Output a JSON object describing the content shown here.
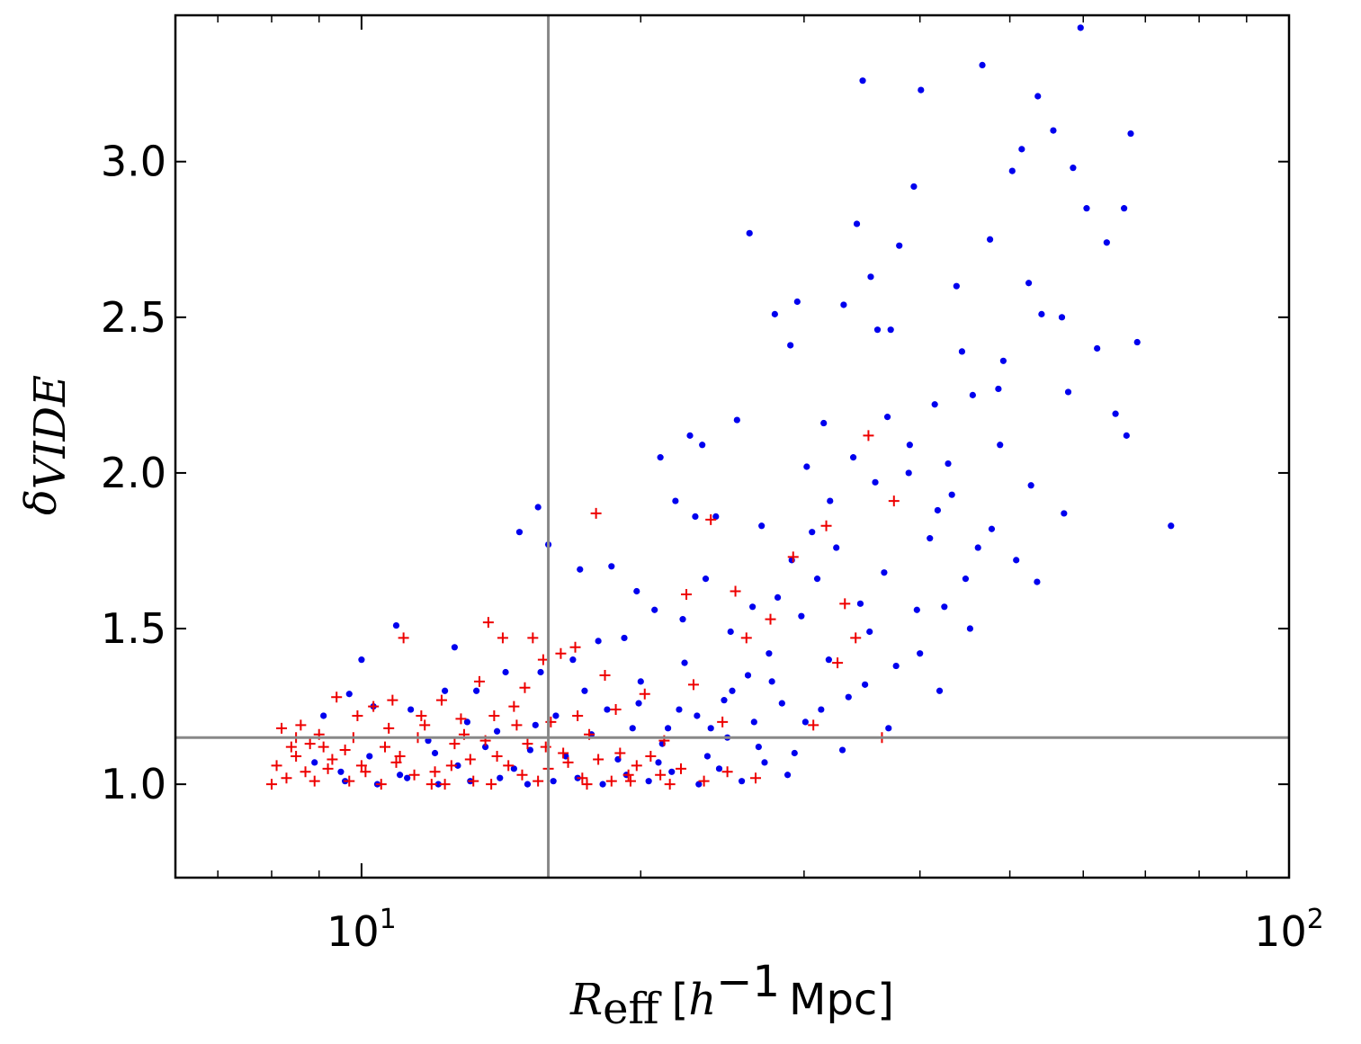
{
  "chart_data": {
    "type": "scatter",
    "title": "",
    "xlabel": {
      "symbol": "R",
      "subscript": "eff",
      "unit_open": "[",
      "unit_h": "h",
      "unit_exp": "−1",
      "unit_rest": "Mpc]"
    },
    "ylabel": {
      "symbol": "δ",
      "subscript": "VIDE"
    },
    "x_scale": "log",
    "xlim": [
      6.3,
      100
    ],
    "ylim": [
      0.7,
      3.47
    ],
    "x_ticks": [
      {
        "value": 10,
        "base": "10",
        "exp": "1"
      },
      {
        "value": 100,
        "base": "10",
        "exp": "2"
      }
    ],
    "y_ticks": [
      {
        "value": 1.0,
        "label": "1.0"
      },
      {
        "value": 1.5,
        "label": "1.5"
      },
      {
        "value": 2.0,
        "label": "2.0"
      },
      {
        "value": 2.5,
        "label": "2.5"
      },
      {
        "value": 3.0,
        "label": "3.0"
      }
    ],
    "reference_lines": {
      "x": 15.9,
      "y": 1.15,
      "color": "#888888"
    },
    "grid": false,
    "series": [
      {
        "marker": "circle",
        "color": "#0000ee",
        "points": [
          [
            10.0,
            1.4
          ],
          [
            10.9,
            1.51
          ],
          [
            12.6,
            1.44
          ],
          [
            14.8,
            1.81
          ],
          [
            15.5,
            1.89
          ],
          [
            15.9,
            1.77
          ],
          [
            17.2,
            1.69
          ],
          [
            18.6,
            1.7
          ],
          [
            19.8,
            1.62
          ],
          [
            21.0,
            2.05
          ],
          [
            21.8,
            1.91
          ],
          [
            22.6,
            2.12
          ],
          [
            23.3,
            2.09
          ],
          [
            22.9,
            1.86
          ],
          [
            24.1,
            1.86
          ],
          [
            25.4,
            2.17
          ],
          [
            26.2,
            2.77
          ],
          [
            27.0,
            1.83
          ],
          [
            27.9,
            2.51
          ],
          [
            29.0,
            2.41
          ],
          [
            29.5,
            2.55
          ],
          [
            30.2,
            2.02
          ],
          [
            31.5,
            2.16
          ],
          [
            33.1,
            2.54
          ],
          [
            34.2,
            2.8
          ],
          [
            34.7,
            3.26
          ],
          [
            35.4,
            2.63
          ],
          [
            36.0,
            2.46
          ],
          [
            37.2,
            2.46
          ],
          [
            38.0,
            2.73
          ],
          [
            39.4,
            2.92
          ],
          [
            40.1,
            3.23
          ],
          [
            41.5,
            2.22
          ],
          [
            42.9,
            2.03
          ],
          [
            43.8,
            2.6
          ],
          [
            44.4,
            2.39
          ],
          [
            45.6,
            2.25
          ],
          [
            46.7,
            3.31
          ],
          [
            47.6,
            2.75
          ],
          [
            48.6,
            2.27
          ],
          [
            49.2,
            2.36
          ],
          [
            50.3,
            2.97
          ],
          [
            51.5,
            3.04
          ],
          [
            52.4,
            2.61
          ],
          [
            53.6,
            3.21
          ],
          [
            54.1,
            2.51
          ],
          [
            55.7,
            3.1
          ],
          [
            56.9,
            2.5
          ],
          [
            57.8,
            2.26
          ],
          [
            58.5,
            2.98
          ],
          [
            59.6,
            3.43
          ],
          [
            60.5,
            2.85
          ],
          [
            62.1,
            2.4
          ],
          [
            63.6,
            2.74
          ],
          [
            65.0,
            2.19
          ],
          [
            66.4,
            2.85
          ],
          [
            67.5,
            3.09
          ],
          [
            68.6,
            2.42
          ],
          [
            66.8,
            2.12
          ],
          [
            74.6,
            1.83
          ],
          [
            57.2,
            1.87
          ],
          [
            52.7,
            1.96
          ],
          [
            48.8,
            2.09
          ],
          [
            46.2,
            1.76
          ],
          [
            43.3,
            1.93
          ],
          [
            41.0,
            1.79
          ],
          [
            38.9,
            2.0
          ],
          [
            36.6,
            1.68
          ],
          [
            34.5,
            1.58
          ],
          [
            32.0,
            1.91
          ],
          [
            30.6,
            1.81
          ],
          [
            29.1,
            1.72
          ],
          [
            28.1,
            1.6
          ],
          [
            26.4,
            1.57
          ],
          [
            25.0,
            1.49
          ],
          [
            23.5,
            1.66
          ],
          [
            22.2,
            1.53
          ],
          [
            20.7,
            1.56
          ],
          [
            19.2,
            1.47
          ],
          [
            18.0,
            1.46
          ],
          [
            16.9,
            1.4
          ],
          [
            15.6,
            1.36
          ],
          [
            14.3,
            1.36
          ],
          [
            13.3,
            1.3
          ],
          [
            12.3,
            1.3
          ],
          [
            11.3,
            1.24
          ],
          [
            10.3,
            1.25
          ],
          [
            9.7,
            1.29
          ],
          [
            9.1,
            1.22
          ],
          [
            53.5,
            1.65
          ],
          [
            50.8,
            1.72
          ],
          [
            47.8,
            1.82
          ],
          [
            45.3,
            1.5
          ],
          [
            42.5,
            1.57
          ],
          [
            40.0,
            1.42
          ],
          [
            37.7,
            1.38
          ],
          [
            35.3,
            1.49
          ],
          [
            33.5,
            1.28
          ],
          [
            31.9,
            1.4
          ],
          [
            30.1,
            1.2
          ],
          [
            28.4,
            1.26
          ],
          [
            26.8,
            1.12
          ],
          [
            25.1,
            1.3
          ],
          [
            23.8,
            1.18
          ],
          [
            22.3,
            1.39
          ],
          [
            21.1,
            1.13
          ],
          [
            19.9,
            1.26
          ],
          [
            18.9,
            1.08
          ],
          [
            17.7,
            1.16
          ],
          [
            16.6,
            1.09
          ],
          [
            15.4,
            1.19
          ],
          [
            14.6,
            1.05
          ],
          [
            13.6,
            1.12
          ],
          [
            12.7,
            1.06
          ],
          [
            11.8,
            1.14
          ],
          [
            11.0,
            1.03
          ],
          [
            10.2,
            1.09
          ],
          [
            9.5,
            1.04
          ],
          [
            8.9,
            1.07
          ],
          [
            28.8,
            1.03
          ],
          [
            27.2,
            1.07
          ],
          [
            25.7,
            1.01
          ],
          [
            24.3,
            1.05
          ],
          [
            23.1,
            1.0
          ],
          [
            21.6,
            1.04
          ],
          [
            20.4,
            1.01
          ],
          [
            19.3,
            1.03
          ],
          [
            18.2,
            1.0
          ],
          [
            17.1,
            1.02
          ],
          [
            16.1,
            1.01
          ],
          [
            15.1,
            1.0
          ],
          [
            14.1,
            1.02
          ],
          [
            13.1,
            1.01
          ],
          [
            12.1,
            1.0
          ],
          [
            11.2,
            1.02
          ],
          [
            10.4,
            1.0
          ],
          [
            9.6,
            1.01
          ],
          [
            41.8,
            1.88
          ],
          [
            39.0,
            2.09
          ],
          [
            36.9,
            2.18
          ],
          [
            35.8,
            1.97
          ],
          [
            33.9,
            2.05
          ],
          [
            32.5,
            1.76
          ],
          [
            31.0,
            1.66
          ],
          [
            29.8,
            1.54
          ],
          [
            27.5,
            1.42
          ],
          [
            26.1,
            1.35
          ],
          [
            24.6,
            1.27
          ],
          [
            23.0,
            1.22
          ],
          [
            21.4,
            1.18
          ],
          [
            20.0,
            1.33
          ],
          [
            18.4,
            1.24
          ],
          [
            17.4,
            1.3
          ],
          [
            16.2,
            1.22
          ],
          [
            15.2,
            1.11
          ],
          [
            14.0,
            1.17
          ],
          [
            13.0,
            1.2
          ],
          [
            12.0,
            1.1
          ],
          [
            44.8,
            1.66
          ],
          [
            42.0,
            1.3
          ],
          [
            39.7,
            1.56
          ],
          [
            37.0,
            1.18
          ],
          [
            34.9,
            1.32
          ],
          [
            33.0,
            1.11
          ],
          [
            31.3,
            1.24
          ],
          [
            29.3,
            1.1
          ],
          [
            27.7,
            1.33
          ],
          [
            26.5,
            1.2
          ],
          [
            24.8,
            1.15
          ],
          [
            23.6,
            1.09
          ],
          [
            22.0,
            1.24
          ],
          [
            20.9,
            1.07
          ],
          [
            19.6,
            1.18
          ]
        ]
      },
      {
        "marker": "plus",
        "color": "#ee0000",
        "points": [
          [
            8.0,
            1.0
          ],
          [
            8.3,
            1.02
          ],
          [
            8.1,
            1.06
          ],
          [
            8.5,
            1.09
          ],
          [
            8.2,
            1.18
          ],
          [
            8.6,
            1.19
          ],
          [
            9.0,
            1.16
          ],
          [
            9.4,
            1.28
          ],
          [
            9.9,
            1.22
          ],
          [
            10.3,
            1.25
          ],
          [
            10.8,
            1.27
          ],
          [
            11.1,
            1.47
          ],
          [
            11.6,
            1.22
          ],
          [
            12.2,
            1.27
          ],
          [
            12.9,
            1.16
          ],
          [
            13.4,
            1.33
          ],
          [
            13.7,
            1.52
          ],
          [
            14.2,
            1.47
          ],
          [
            14.6,
            1.25
          ],
          [
            15.0,
            1.31
          ],
          [
            15.3,
            1.47
          ],
          [
            15.7,
            1.4
          ],
          [
            16.4,
            1.42
          ],
          [
            17.0,
            1.44
          ],
          [
            17.9,
            1.87
          ],
          [
            18.3,
            1.35
          ],
          [
            19.0,
            1.1
          ],
          [
            19.4,
            1.03
          ],
          [
            20.5,
            1.09
          ],
          [
            21.2,
            1.14
          ],
          [
            22.4,
            1.61
          ],
          [
            23.8,
            1.85
          ],
          [
            24.5,
            1.2
          ],
          [
            25.3,
            1.62
          ],
          [
            26.6,
            1.02
          ],
          [
            27.6,
            1.53
          ],
          [
            29.2,
            1.73
          ],
          [
            30.7,
            1.19
          ],
          [
            31.7,
            1.83
          ],
          [
            32.6,
            1.39
          ],
          [
            34.1,
            1.47
          ],
          [
            35.2,
            2.12
          ],
          [
            36.4,
            1.15
          ],
          [
            37.5,
            1.91
          ],
          [
            33.2,
            1.58
          ],
          [
            26.0,
            1.47
          ],
          [
            22.8,
            1.32
          ],
          [
            20.2,
            1.29
          ],
          [
            18.8,
            1.24
          ],
          [
            17.6,
            1.16
          ],
          [
            16.7,
            1.07
          ],
          [
            15.8,
            1.12
          ],
          [
            14.9,
            1.03
          ],
          [
            14.0,
            1.09
          ],
          [
            13.2,
            1.01
          ],
          [
            12.5,
            1.06
          ],
          [
            11.9,
            1.0
          ],
          [
            11.4,
            1.03
          ],
          [
            10.9,
            1.07
          ],
          [
            10.5,
            1.0
          ],
          [
            10.1,
            1.04
          ],
          [
            9.7,
            1.01
          ],
          [
            9.3,
            1.08
          ],
          [
            8.9,
            1.01
          ],
          [
            8.7,
            1.04
          ],
          [
            8.4,
            1.12
          ],
          [
            8.8,
            1.13
          ],
          [
            9.2,
            1.05
          ],
          [
            9.6,
            1.11
          ],
          [
            10.0,
            1.06
          ],
          [
            10.6,
            1.12
          ],
          [
            11.0,
            1.09
          ],
          [
            11.5,
            1.15
          ],
          [
            12.0,
            1.04
          ],
          [
            12.6,
            1.13
          ],
          [
            13.1,
            1.08
          ],
          [
            13.6,
            1.14
          ],
          [
            14.4,
            1.06
          ],
          [
            15.1,
            1.13
          ],
          [
            15.9,
            1.05
          ],
          [
            16.5,
            1.1
          ],
          [
            17.3,
            1.02
          ],
          [
            18.0,
            1.08
          ],
          [
            18.6,
            1.01
          ],
          [
            19.8,
            1.06
          ],
          [
            21.0,
            1.03
          ],
          [
            22.1,
            1.05
          ],
          [
            23.4,
            1.01
          ],
          [
            24.8,
            1.04
          ],
          [
            16.0,
            1.2
          ],
          [
            17.1,
            1.22
          ],
          [
            14.7,
            1.19
          ],
          [
            13.9,
            1.22
          ],
          [
            12.8,
            1.21
          ],
          [
            11.7,
            1.19
          ],
          [
            10.7,
            1.18
          ],
          [
            9.8,
            1.15
          ],
          [
            9.1,
            1.12
          ],
          [
            8.5,
            1.15
          ],
          [
            12.3,
            1.0
          ],
          [
            13.8,
            1.0
          ],
          [
            15.5,
            1.01
          ],
          [
            17.5,
            1.0
          ],
          [
            19.5,
            1.01
          ],
          [
            21.5,
            1.0
          ]
        ]
      }
    ]
  }
}
